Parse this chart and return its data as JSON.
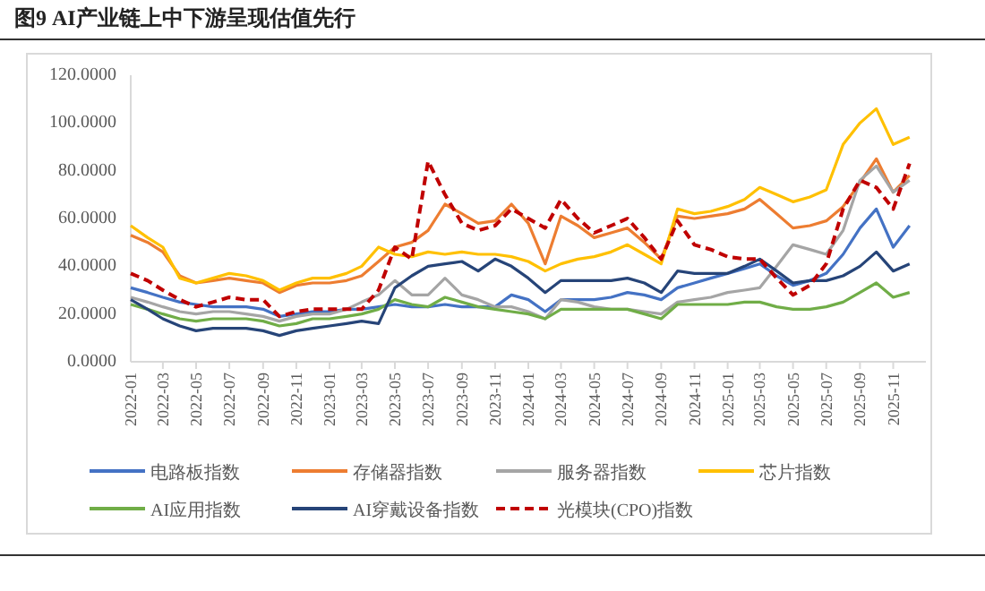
{
  "chart_data": {
    "type": "line",
    "title": "图9  AI产业链上中下游呈现估值先行",
    "x": [
      "2022-01",
      "2022-02",
      "2022-03",
      "2022-04",
      "2022-05",
      "2022-06",
      "2022-07",
      "2022-08",
      "2022-09",
      "2022-10",
      "2022-11",
      "2022-12",
      "2023-01",
      "2023-02",
      "2023-03",
      "2023-04",
      "2023-05",
      "2023-06",
      "2023-07",
      "2023-08",
      "2023-09",
      "2023-10",
      "2023-11",
      "2023-12",
      "2024-01",
      "2024-02",
      "2024-03",
      "2024-04",
      "2024-05",
      "2024-06",
      "2024-07",
      "2024-08",
      "2024-09",
      "2024-10",
      "2024-11",
      "2024-12",
      "2025-01",
      "2025-02",
      "2025-03",
      "2025-04",
      "2025-05",
      "2025-06",
      "2025-07",
      "2025-08",
      "2025-09",
      "2025-10",
      "2025-11",
      "2025-12"
    ],
    "xlim": [
      "2022-01-01",
      "2025-12-31"
    ],
    "xticks": [
      {
        "value": "2022-01",
        "label": "2022-01"
      },
      {
        "value": "2022-03",
        "label": "2022-03"
      },
      {
        "value": "2022-05",
        "label": "2022-05"
      },
      {
        "value": "2022-07",
        "label": "2022-07"
      },
      {
        "value": "2022-09",
        "label": "2022-09"
      },
      {
        "value": "2022-11",
        "label": "2022-11"
      },
      {
        "value": "2023-01",
        "label": "2023-01"
      },
      {
        "value": "2023-03",
        "label": "2023-03"
      },
      {
        "value": "2023-05",
        "label": "2023-05"
      },
      {
        "value": "2023-07",
        "label": "2023-07"
      },
      {
        "value": "2023-09",
        "label": "2023-09"
      },
      {
        "value": "2023-11",
        "label": "2023-11"
      },
      {
        "value": "2024-01",
        "label": "2024-01"
      },
      {
        "value": "2024-03",
        "label": "2024-03"
      },
      {
        "value": "2024-05",
        "label": "2024-05"
      },
      {
        "value": "2024-07",
        "label": "2024-07"
      },
      {
        "value": "2024-09",
        "label": "2024-09"
      },
      {
        "value": "2024-11",
        "label": "2024-11"
      },
      {
        "value": "2025-01",
        "label": "2025-01"
      },
      {
        "value": "2025-03",
        "label": "2025-03"
      },
      {
        "value": "2025-05",
        "label": "2025-05"
      },
      {
        "value": "2025-07",
        "label": "2025-07"
      },
      {
        "value": "2025-09",
        "label": "2025-09"
      },
      {
        "value": "2025-11",
        "label": "2025-11"
      }
    ],
    "ylim": [
      0,
      120
    ],
    "yticks": [
      {
        "value": 0,
        "label": "0.0000"
      },
      {
        "value": 20,
        "label": "20.0000"
      },
      {
        "value": 40,
        "label": "40.0000"
      },
      {
        "value": 60,
        "label": "60.0000"
      },
      {
        "value": 80,
        "label": "80.0000"
      },
      {
        "value": 100,
        "label": "100.0000"
      },
      {
        "value": 120,
        "label": "120.0000"
      }
    ],
    "grid": false,
    "legend": "bottom",
    "marker": "none",
    "series": [
      {
        "name": "电路板指数",
        "color": "#4472c4",
        "values": [
          31,
          29,
          27,
          25,
          24,
          23,
          23,
          23,
          22,
          19,
          20,
          21,
          21,
          22,
          22,
          23,
          24,
          23,
          23,
          24,
          23,
          23,
          23,
          28,
          26,
          21,
          26,
          26,
          26,
          27,
          29,
          28,
          26,
          31,
          33,
          35,
          37,
          39,
          41,
          36,
          32,
          34,
          37,
          45,
          56,
          64,
          48,
          57
        ]
      },
      {
        "name": "存储器指数",
        "color": "#ed7d31",
        "values": [
          53,
          50,
          46,
          36,
          33,
          34,
          35,
          34,
          33,
          29,
          32,
          33,
          33,
          34,
          36,
          42,
          48,
          50,
          55,
          66,
          62,
          58,
          59,
          66,
          58,
          41,
          61,
          57,
          52,
          54,
          56,
          50,
          43,
          61,
          60,
          61,
          62,
          64,
          68,
          62,
          56,
          57,
          59,
          65,
          75,
          85,
          71,
          78
        ]
      },
      {
        "name": "服务器指数",
        "color": "#a5a5a5",
        "values": [
          27,
          25,
          23,
          21,
          20,
          21,
          21,
          20,
          19,
          17,
          19,
          20,
          20,
          22,
          25,
          28,
          34,
          28,
          28,
          35,
          28,
          26,
          23,
          23,
          21,
          18,
          26,
          25,
          23,
          22,
          22,
          21,
          20,
          25,
          26,
          27,
          29,
          30,
          31,
          40,
          49,
          47,
          45,
          55,
          76,
          82,
          71,
          76
        ]
      },
      {
        "name": "芯片指数",
        "color": "#ffc000",
        "values": [
          57,
          52,
          48,
          35,
          33,
          35,
          37,
          36,
          34,
          30,
          33,
          35,
          35,
          37,
          40,
          48,
          45,
          44,
          46,
          45,
          46,
          45,
          45,
          44,
          42,
          38,
          41,
          43,
          44,
          46,
          49,
          45,
          41,
          64,
          62,
          63,
          65,
          68,
          73,
          70,
          67,
          69,
          72,
          91,
          100,
          106,
          91,
          94
        ]
      },
      {
        "name": "AI应用指数",
        "color": "#70ad47",
        "values": [
          24,
          22,
          20,
          18,
          17,
          18,
          18,
          18,
          17,
          15,
          16,
          18,
          18,
          19,
          20,
          22,
          26,
          24,
          23,
          27,
          25,
          23,
          22,
          21,
          20,
          18,
          22,
          22,
          22,
          22,
          22,
          20,
          18,
          24,
          24,
          24,
          24,
          25,
          25,
          23,
          22,
          22,
          23,
          25,
          29,
          33,
          27,
          29
        ]
      },
      {
        "name": "AI穿戴设备指数",
        "color": "#264478",
        "values": [
          26,
          22,
          18,
          15,
          13,
          14,
          14,
          14,
          13,
          11,
          13,
          14,
          15,
          16,
          17,
          16,
          31,
          36,
          40,
          41,
          42,
          38,
          43,
          40,
          35,
          29,
          34,
          34,
          34,
          34,
          35,
          33,
          29,
          38,
          37,
          37,
          37,
          40,
          43,
          38,
          33,
          34,
          34,
          36,
          40,
          46,
          38,
          41
        ]
      },
      {
        "name": "光模块(CPO)指数",
        "color": "#c00000",
        "line_style": "dashed",
        "values": [
          37,
          34,
          30,
          26,
          23,
          25,
          27,
          26,
          26,
          19,
          21,
          22,
          22,
          22,
          22,
          30,
          48,
          43,
          84,
          70,
          58,
          55,
          57,
          64,
          60,
          56,
          68,
          60,
          54,
          57,
          60,
          52,
          43,
          59,
          49,
          47,
          44,
          43,
          43,
          35,
          28,
          32,
          41,
          64,
          76,
          73,
          64,
          83
        ]
      }
    ]
  }
}
